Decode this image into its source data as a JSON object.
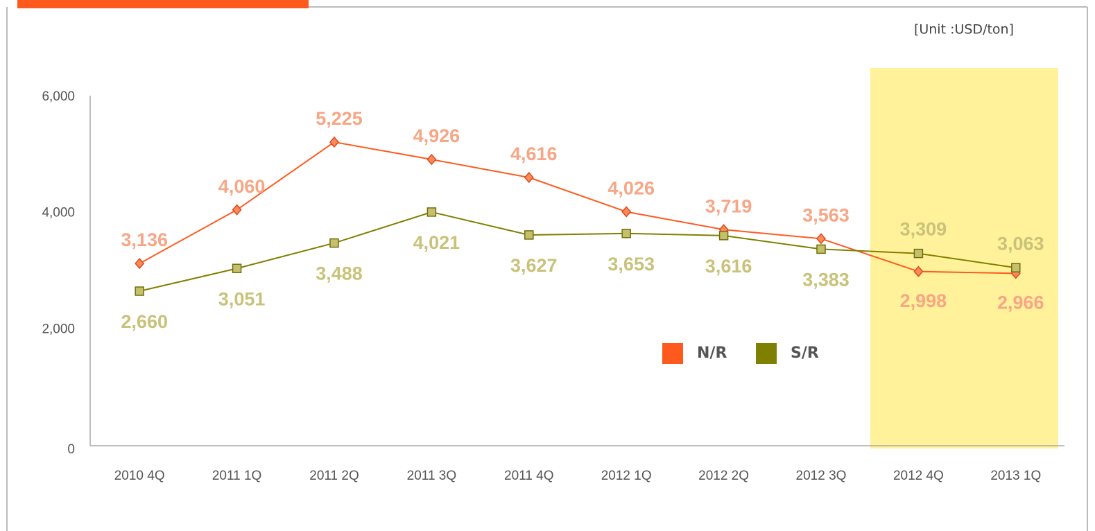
{
  "chart_data": {
    "type": "line",
    "unit_note": "[Unit :USD/ton]",
    "categories": [
      "2010 4Q",
      "2011 1Q",
      "2011 2Q",
      "2011 3Q",
      "2011 4Q",
      "2012 1Q",
      "2012 2Q",
      "2012 3Q",
      "2012 4Q",
      "2013 1Q"
    ],
    "series": [
      {
        "name": "N/R",
        "color": "#ff5a1e",
        "values": [
          3136,
          4060,
          5225,
          4926,
          4616,
          4026,
          3719,
          3563,
          2998,
          2966
        ],
        "value_labels": [
          "3,136",
          "4,060",
          "5,225",
          "4,926",
          "4,616",
          "4,026",
          "3,719",
          "3,563",
          "2,998",
          "2,966"
        ]
      },
      {
        "name": "S/R",
        "color": "#808000",
        "values": [
          2660,
          3051,
          3488,
          4021,
          3627,
          3653,
          3616,
          3383,
          3309,
          3063
        ],
        "value_labels": [
          "2,660",
          "3,051",
          "3,488",
          "4,021",
          "3,627",
          "3,653",
          "3,616",
          "3,383",
          "3,309",
          "3,063"
        ]
      }
    ],
    "ylim": [
      0,
      6000
    ],
    "yticks": [
      0,
      {
        "value": 2000,
        "label": "2,000"
      },
      {
        "value": 4000,
        "label": "4,000"
      },
      {
        "value": 6000,
        "label": "6,000"
      }
    ],
    "grid": false
  }
}
